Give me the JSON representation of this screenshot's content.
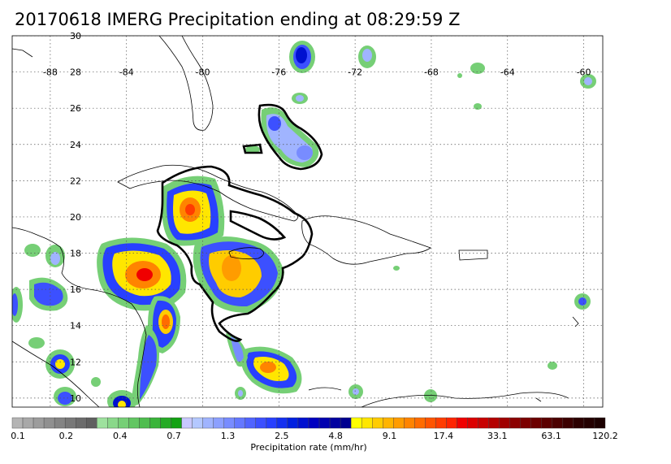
{
  "title": "20170618 IMERG Precipitation ending at 08:29:59 Z",
  "map": {
    "lon_range": [
      -90,
      -59
    ],
    "lat_range": [
      9.5,
      30
    ],
    "lon_ticks": [
      -88,
      -84,
      -80,
      -76,
      -72,
      -68,
      -64,
      -60
    ],
    "lat_ticks": [
      10,
      12,
      14,
      16,
      18,
      20,
      22,
      24,
      26,
      28,
      30
    ],
    "lon_labels": [
      "-88",
      "-84",
      "-80",
      "-76",
      "-72",
      "-68",
      "-64",
      "-60"
    ],
    "lat_labels": [
      "10",
      "12",
      "14",
      "16",
      "18",
      "20",
      "22",
      "24",
      "26",
      "28",
      "30"
    ],
    "grid": true
  },
  "colorbar": {
    "label": "Precipitation rate (mm/hr)",
    "tick_labels": [
      "0.1",
      "0.2",
      "0.4",
      "0.7",
      "1.3",
      "2.5",
      "4.8",
      "9.1",
      "17.4",
      "33.1",
      "63.1",
      "120.2"
    ],
    "colors": [
      "#b4b4b4",
      "#a8a8a8",
      "#9c9c9c",
      "#909090",
      "#848484",
      "#787878",
      "#6c6c6c",
      "#606060",
      "#9ee19e",
      "#8ad88a",
      "#76cf76",
      "#62c662",
      "#4ebd4e",
      "#3ab43a",
      "#26ab26",
      "#12a212",
      "#c8c8ff",
      "#b4c8ff",
      "#a0b4ff",
      "#8ca0ff",
      "#788cff",
      "#6478ff",
      "#5064ff",
      "#3c50ff",
      "#2840ff",
      "#1430f0",
      "#0020e0",
      "#0010d0",
      "#0000c0",
      "#0000b0",
      "#0000a0",
      "#000090",
      "#ffff00",
      "#ffe600",
      "#ffcc00",
      "#ffb400",
      "#ff9c00",
      "#ff8400",
      "#ff6c00",
      "#ff5400",
      "#ff3c00",
      "#ff2400",
      "#f00000",
      "#dc0000",
      "#c80000",
      "#b40000",
      "#a00000",
      "#8c0000",
      "#7c0000",
      "#6c0000",
      "#5c0000",
      "#4c0000",
      "#3c0000",
      "#2c0000",
      "#240000",
      "#1c0000"
    ]
  }
}
